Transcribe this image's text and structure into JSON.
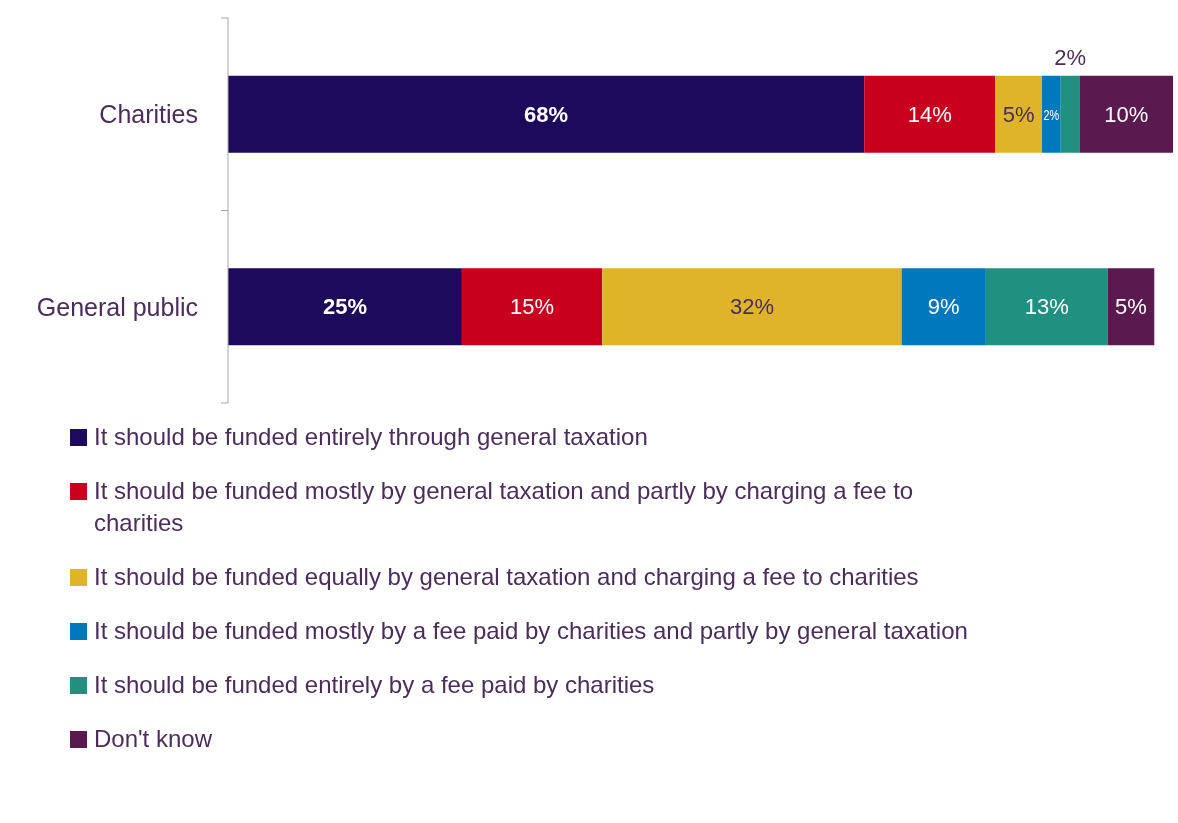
{
  "chart_data": {
    "type": "bar",
    "orientation": "horizontal",
    "stacked": true,
    "categories": [
      "Charities",
      "General public"
    ],
    "series": [
      {
        "name": "It should be funded entirely through general taxation",
        "color": "#1e0a5a",
        "values": [
          68,
          25
        ],
        "value_labels": [
          "68%",
          "25%"
        ]
      },
      {
        "name": "It should be funded mostly by general taxation and partly by charging a fee to charities",
        "color": "#c8001e",
        "values": [
          14,
          15
        ],
        "value_labels": [
          "14%",
          "15%"
        ]
      },
      {
        "name": "It should be funded equally by general taxation and charging a fee to charities",
        "color": "#e0b428",
        "values": [
          5,
          32
        ],
        "value_labels": [
          "5%",
          "32%"
        ]
      },
      {
        "name": "It should be funded mostly by a fee paid by charities and partly by general taxation",
        "color": "#0078be",
        "values": [
          2,
          9
        ],
        "value_labels": [
          "2%",
          "9%"
        ]
      },
      {
        "name": "It should be funded entirely by a fee paid by charities",
        "color": "#209080",
        "values": [
          2,
          13
        ],
        "value_labels": [
          "2%",
          "13%"
        ]
      },
      {
        "name": "Don't know",
        "color": "#5a1a50",
        "values": [
          10,
          5
        ],
        "value_labels": [
          "10%",
          "5%"
        ]
      }
    ],
    "legend": "bottom",
    "tick_labels": "y"
  }
}
